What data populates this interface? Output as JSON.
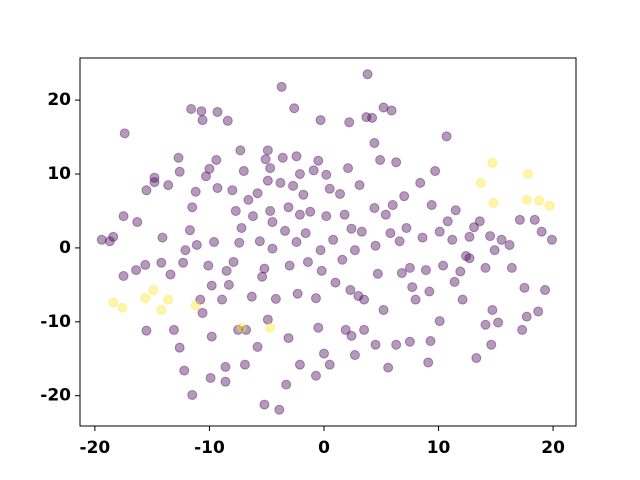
{
  "chart_data": {
    "type": "scatter",
    "xlim": [
      -21.3,
      22
    ],
    "ylim": [
      -24.1,
      25.7
    ],
    "xticks": [
      -20,
      -10,
      0,
      10,
      20
    ],
    "yticks": [
      -20,
      -10,
      0,
      10,
      20
    ],
    "alpha": 0.4,
    "series": [
      {
        "color": "#440154",
        "x": [
          -19.4,
          -18.7,
          -18.4,
          -17.5,
          -17.5,
          -16.3,
          -15.5,
          -15.5,
          -14.8,
          -14.8,
          -14.2,
          -14.1,
          -13.6,
          -13.1,
          -12.7,
          -12.6,
          -12.3,
          -12.1,
          -11.7,
          -11.5,
          -11.2,
          -11.1,
          -10.8,
          -10.6,
          -10.3,
          -10.1,
          -10.0,
          -9.8,
          -9.6,
          -9.4,
          -9.3,
          -8.9,
          -8.5,
          -8.3,
          -8.0,
          -7.9,
          -7.7,
          -7.4,
          -7.2,
          -7.0,
          -6.8,
          -6.6,
          -6.3,
          -6.2,
          -5.8,
          -5.6,
          -5.4,
          -5.2,
          -5.1,
          -4.9,
          -4.7,
          -4.5,
          -4.5,
          -4.2,
          -3.8,
          -3.6,
          -3.4,
          -3.1,
          -3.0,
          -2.7,
          -2.6,
          -2.4,
          -2.3,
          -2.1,
          -1.8,
          -1.6,
          -1.4,
          -1.2,
          -0.9,
          -0.7,
          -0.5,
          -0.3,
          -0.2,
          0.0,
          0.2,
          0.5,
          0.8,
          1.0,
          1.4,
          1.6,
          1.8,
          2.1,
          2.4,
          2.7,
          3.0,
          3.1,
          3.3,
          3.5,
          3.7,
          3.8,
          4.2,
          4.4,
          4.5,
          4.7,
          4.9,
          5.2,
          5.4,
          5.8,
          6.0,
          6.3,
          6.6,
          6.8,
          7.0,
          7.2,
          7.5,
          7.7,
          8.0,
          8.4,
          8.6,
          8.9,
          9.2,
          9.4,
          9.7,
          10.1,
          10.4,
          10.7,
          10.8,
          11.2,
          11.5,
          11.9,
          12.1,
          12.4,
          12.7,
          13.1,
          13.3,
          13.6,
          14.1,
          14.5,
          14.7,
          14.9,
          15.2,
          15.5,
          16.4,
          17.5,
          17.7,
          19.0,
          19.3,
          19.9,
          -3.7,
          -0.3,
          -12.6,
          -12.2,
          -11.5,
          -9.9,
          -8.6,
          -8.6,
          -6.9,
          -5.8,
          -5.2,
          -3.9,
          -3.3,
          -2.1,
          -0.7,
          -3.1,
          -9.8,
          5.9,
          2.2,
          4.4,
          2.3,
          1.9,
          7.5,
          9.3,
          9.1,
          10.1,
          14.1,
          14.6,
          17.3,
          18.7,
          -7.5,
          -11.6,
          -10.7,
          -10.6,
          -9.3,
          -8.4,
          -17.4,
          -7.3,
          -4.9,
          -2.4,
          -4.7,
          -2.1,
          -0.5,
          3.5,
          2.4,
          0.5,
          -16.4,
          -15.6,
          -13.4,
          5.2,
          0.2,
          17.1,
          16.2,
          18.4,
          12.7,
          11.4,
          6.3,
          4.5,
          5.6,
          2.7,
          -4.9
        ],
        "values": [
          1.1,
          0.9,
          1.5,
          -3.8,
          4.3,
          3.5,
          -11.2,
          7.8,
          8.9,
          9.5,
          -2.0,
          1.4,
          8.5,
          -11.1,
          12.2,
          10.3,
          -2.0,
          -0.3,
          2.4,
          5.5,
          7.6,
          0.4,
          -7.0,
          -8.8,
          9.7,
          -2.4,
          10.7,
          -5.1,
          0.8,
          11.9,
          8.1,
          -7.0,
          -3.1,
          -5.0,
          7.8,
          -1.9,
          5.0,
          0.7,
          2.7,
          10.4,
          -11.1,
          6.5,
          -6.6,
          4.3,
          7.4,
          0.9,
          -3.9,
          -2.8,
          12.0,
          9.1,
          10.8,
          3.5,
          -0.1,
          -6.9,
          8.8,
          12.2,
          2.3,
          5.5,
          -2.4,
          8.4,
          18.9,
          0.8,
          -6.2,
          10.0,
          7.2,
          2.0,
          -1.9,
          4.9,
          10.5,
          -6.8,
          11.8,
          -0.3,
          -3.1,
          -14.3,
          4.3,
          8.0,
          1.1,
          -4.7,
          7.3,
          -1.6,
          4.5,
          10.8,
          2.6,
          -0.3,
          -6.5,
          8.5,
          2.2,
          -7.0,
          17.7,
          23.5,
          17.6,
          5.4,
          0.3,
          -3.5,
          11.9,
          -8.4,
          4.5,
          2.0,
          5.8,
          11.6,
          0.9,
          -3.4,
          7.0,
          2.7,
          -2.7,
          -5.3,
          -7.0,
          8.8,
          1.4,
          -3.0,
          -5.9,
          5.8,
          10.4,
          2.2,
          -2.4,
          15.1,
          3.6,
          1.1,
          5.1,
          -3.2,
          -7.0,
          -1.1,
          1.5,
          2.8,
          -14.9,
          3.6,
          -2.7,
          1.6,
          -8.4,
          -0.3,
          -10.1,
          1.1,
          -2.7,
          -5.4,
          -9.3,
          2.2,
          -5.7,
          1.1,
          21.8,
          17.3,
          -13.5,
          -16.6,
          -19.9,
          -17.6,
          -18.1,
          -16.1,
          -15.8,
          -13.4,
          -21.2,
          -21.9,
          -18.5,
          -15.8,
          -17.3,
          -12.2,
          -12.0,
          18.6,
          17.0,
          14.2,
          -5.7,
          -11.1,
          -12.7,
          -12.6,
          -15.5,
          -9.9,
          -10.4,
          -13.1,
          -11.1,
          -8.6,
          -11.1,
          18.8,
          18.5,
          17.3,
          18.4,
          17.2,
          15.5,
          13.2,
          13.2,
          12.4,
          5.0,
          4.5,
          -10.8,
          -11.1,
          -11.9,
          -15.8,
          -3.0,
          -2.3,
          -3.6,
          19.0,
          9.9,
          3.8,
          0.4,
          3.8,
          -1.4,
          -4.6,
          -13.1,
          -13.1,
          -16.2,
          -14.5,
          -9.7
        ]
      },
      {
        "color": "#fde725",
        "x": [
          13.7,
          14.7,
          17.8,
          14.8,
          17.7,
          18.8,
          19.7,
          -14.9,
          -15.6,
          -14.2,
          -13.6,
          -18.4,
          -17.6,
          -11.2,
          -7.2,
          -4.7
        ],
        "values": [
          8.8,
          11.5,
          10.0,
          6.1,
          6.5,
          6.4,
          5.7,
          -5.7,
          -6.8,
          -8.4,
          -7.0,
          -7.4,
          -8.1,
          -7.8,
          -10.8,
          -10.8
        ]
      }
    ]
  }
}
